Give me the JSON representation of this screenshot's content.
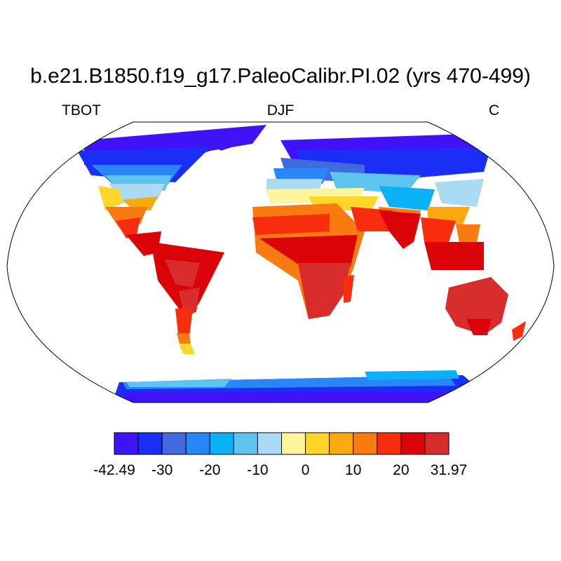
{
  "title": "b.e21.B1850.f19_g17.PaleoCalibr.PI.02 (yrs 470-499)",
  "left_string": "TBOT",
  "center_string": "DJF",
  "right_string": "C",
  "colorbar": {
    "colors": [
      "#3f12f7",
      "#1b2ef5",
      "#4169e0",
      "#2886f7",
      "#0ab1f7",
      "#5fc3ef",
      "#abdbf2",
      "#fdf59b",
      "#fed629",
      "#fca90f",
      "#f97a11",
      "#f62e0d",
      "#dc0308",
      "#d82c2c"
    ],
    "labels": [
      "-42.49",
      "-30",
      "-20",
      "-10",
      "0",
      "10",
      "20",
      "31.97"
    ]
  }
}
